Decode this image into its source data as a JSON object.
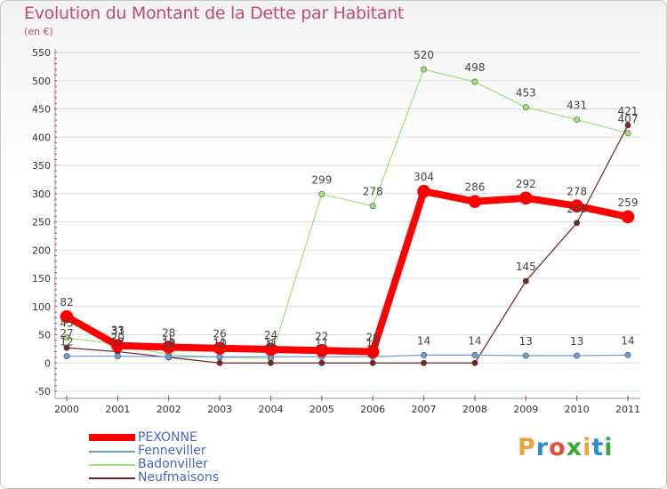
{
  "title": "Evolution du Montant de la Dette par Habitant",
  "subtitle": "(en €)",
  "logo": {
    "letters": [
      "P",
      "r",
      "o",
      "x",
      "i",
      "t",
      "i"
    ],
    "colors": [
      "#e8a33d",
      "#2a8fd4",
      "#e84c3d",
      "#3daa3d",
      "#e8a33d",
      "#2a8fd4",
      "#3daa3d"
    ]
  },
  "chart_data": {
    "type": "line",
    "x": [
      "2000",
      "2001",
      "2002",
      "2003",
      "2004",
      "2005",
      "2006",
      "2007",
      "2008",
      "2009",
      "2010",
      "2011"
    ],
    "ylim": [
      -50,
      550
    ],
    "yticks": [
      "-50",
      "0",
      "50",
      "100",
      "150",
      "200",
      "250",
      "300",
      "350",
      "400",
      "450",
      "500",
      "550"
    ],
    "series": [
      {
        "name": "PEXONNE",
        "color": "#ff0000",
        "width": 8,
        "values": [
          82,
          31,
          28,
          26,
          24,
          22,
          20,
          304,
          286,
          292,
          278,
          259
        ],
        "labels": [
          "82",
          "31",
          "28",
          "26",
          "24",
          "22",
          "20",
          "304",
          "286",
          "292",
          "278",
          "259"
        ]
      },
      {
        "name": "Fenneviller",
        "color": "#6b9ed6",
        "width": 1.2,
        "values": [
          12,
          12,
          11,
          11,
          11,
          11,
          11,
          14,
          14,
          13,
          13,
          14
        ],
        "labels": [
          "12",
          "12",
          "11",
          "11",
          "11",
          "11",
          "11",
          "14",
          "14",
          "13",
          "13",
          "14"
        ]
      },
      {
        "name": "Badonviller",
        "color": "#9ee27a",
        "width": 1.2,
        "values": [
          45,
          33,
          15,
          10,
          8,
          299,
          278,
          520,
          498,
          453,
          431,
          407
        ],
        "labels": [
          "45",
          "33",
          "15",
          "10",
          "8",
          "299",
          "278",
          "520",
          "498",
          "453",
          "431",
          "407"
        ]
      },
      {
        "name": "Neufmaisons",
        "color": "#7a2323",
        "width": 1.2,
        "values": [
          27,
          20,
          10,
          0,
          0,
          0,
          0,
          0,
          0,
          145,
          248,
          421
        ],
        "labels": [
          "27",
          "20",
          "10",
          "",
          "",
          "",
          "",
          "",
          "",
          "145",
          "248",
          "421"
        ]
      }
    ]
  }
}
